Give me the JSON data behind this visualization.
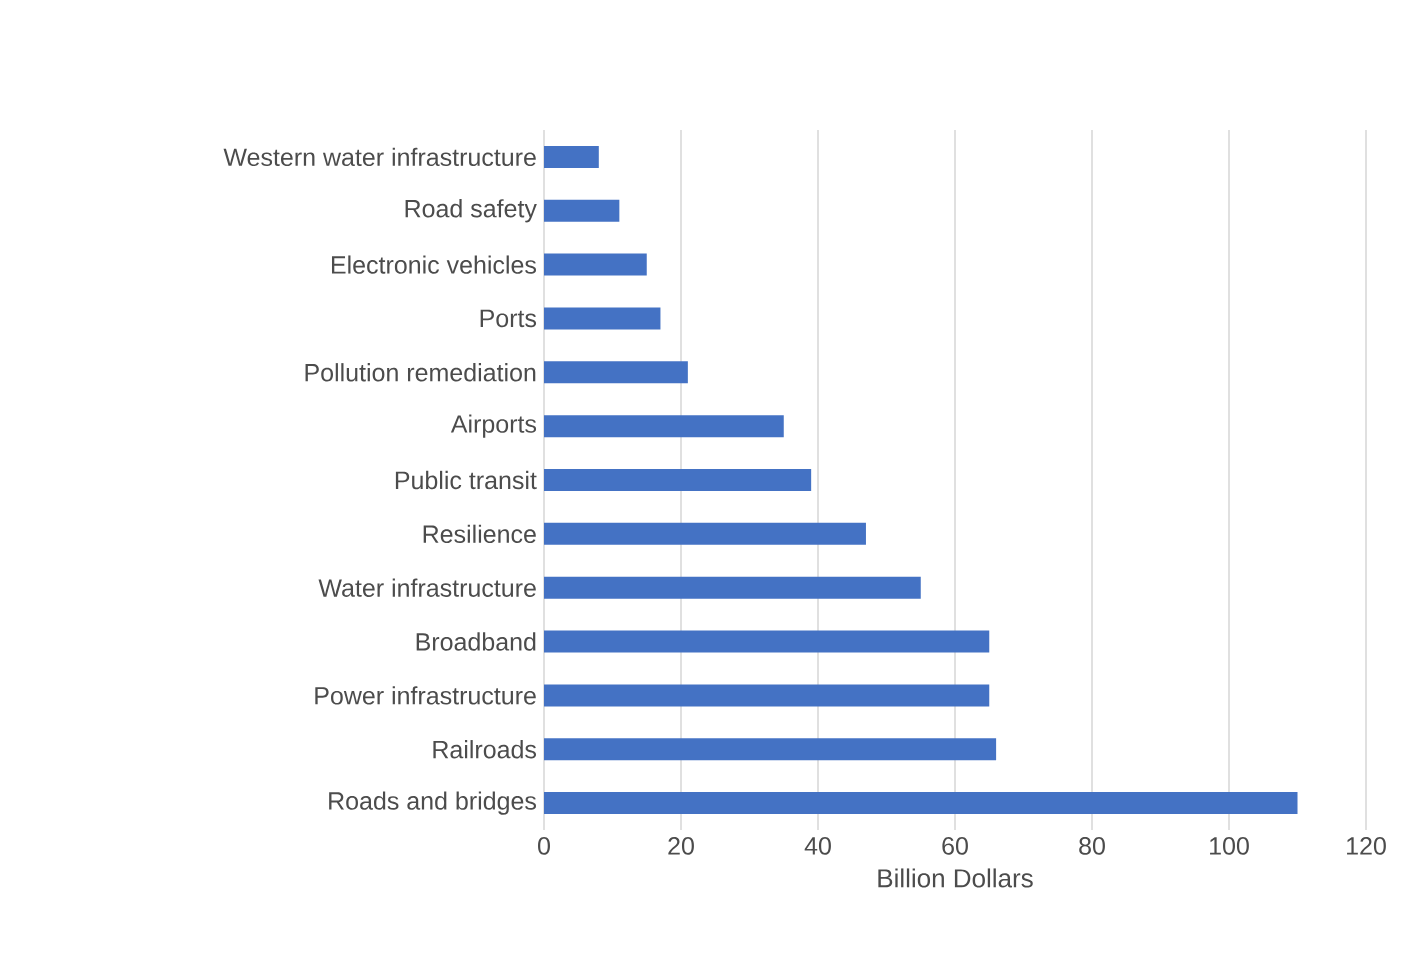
{
  "chart_data": {
    "type": "bar",
    "orientation": "horizontal",
    "xlabel": "Billion Dollars",
    "categories": [
      "Western water infrastructure",
      "Road safety",
      "Electronic vehicles",
      "Ports",
      "Pollution remediation",
      "Airports",
      "Public transit",
      "Resilience",
      "Water infrastructure",
      "Broadband",
      "Power infrastructure",
      "Railroads",
      "Roads and bridges"
    ],
    "values": [
      8,
      11,
      15,
      17,
      21,
      35,
      39,
      47,
      55,
      65,
      65,
      66,
      110
    ],
    "color": "#4472c4",
    "xlim": [
      0,
      120
    ],
    "xticks": [
      0,
      20,
      40,
      60,
      80,
      100,
      120
    ],
    "grid": "x"
  }
}
